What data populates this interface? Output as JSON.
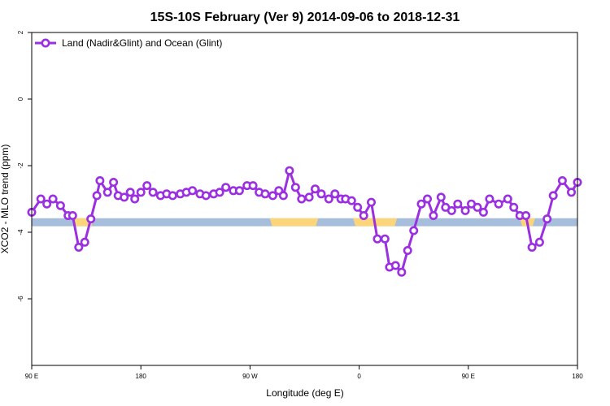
{
  "chart_data": {
    "type": "line",
    "title": "15S-10S February (Ver 9)   2014-09-06 to 2018-12-31",
    "xlabel": "Longitude (deg E)",
    "ylabel": "XCO2 - MLO trend (ppm)",
    "xlim": [
      90,
      450
    ],
    "ylim": [
      -8,
      2
    ],
    "x_tick_values": [
      90,
      162,
      234,
      306,
      378,
      450
    ],
    "x_tick_labels": [
      "90 E",
      "180",
      "90 W",
      "0",
      "90 E",
      "180"
    ],
    "y_ticks": [
      -6,
      -4,
      -2,
      0,
      2
    ],
    "grid": false,
    "legend_position": "top-left",
    "surface_band": {
      "y_top": -3.58,
      "y_bottom": -3.82,
      "ocean_color": "#a6bddb",
      "land_color": "#fcd57a",
      "land_segments": [
        [
          117,
          131
        ],
        [
          247,
          279
        ],
        [
          302,
          331
        ],
        [
          412,
          422
        ]
      ]
    },
    "series": [
      {
        "name": "Land (Nadir&Glint) and Ocean (Glint)",
        "color": "#9b30e0",
        "x": [
          90,
          96,
          100,
          104,
          109,
          114,
          117,
          121,
          125,
          129,
          133,
          135,
          140,
          144,
          147,
          151,
          155,
          158,
          162,
          166,
          170,
          175,
          179,
          183,
          188,
          192,
          196,
          201,
          205,
          210,
          214,
          218,
          223,
          227,
          232,
          236,
          240,
          244,
          249,
          253,
          256,
          260,
          264,
          268,
          273,
          277,
          281,
          286,
          290,
          294,
          297,
          301,
          305,
          309,
          314,
          318,
          323,
          326,
          330,
          334,
          338,
          342,
          347,
          351,
          355,
          360,
          363,
          367,
          371,
          376,
          380,
          384,
          388,
          392,
          398,
          404,
          408,
          412,
          416,
          420,
          425,
          430,
          434,
          440,
          446,
          450
        ],
        "y": [
          -3.4,
          -3.0,
          -3.15,
          -3.0,
          -3.2,
          -3.5,
          -3.5,
          -4.45,
          -4.3,
          -3.6,
          -2.9,
          -2.45,
          -2.8,
          -2.5,
          -2.9,
          -2.95,
          -2.8,
          -3.0,
          -2.8,
          -2.6,
          -2.8,
          -2.9,
          -2.85,
          -2.9,
          -2.85,
          -2.8,
          -2.75,
          -2.85,
          -2.9,
          -2.85,
          -2.8,
          -2.65,
          -2.75,
          -2.75,
          -2.6,
          -2.6,
          -2.8,
          -2.85,
          -2.9,
          -2.75,
          -2.9,
          -2.15,
          -2.65,
          -3.0,
          -2.95,
          -2.7,
          -2.85,
          -3.0,
          -2.85,
          -3.0,
          -3.0,
          -3.05,
          -3.25,
          -3.5,
          -3.1,
          -4.2,
          -4.2,
          -5.05,
          -5.0,
          -5.2,
          -4.55,
          -3.95,
          -3.15,
          -3.0,
          -3.5,
          -2.95,
          -3.25,
          -3.35,
          -3.15,
          -3.35,
          -3.15,
          -3.25,
          -3.4,
          -3.0,
          -3.15,
          -3.0,
          -3.25,
          -3.5,
          -3.5,
          -4.45,
          -4.3,
          -3.6,
          -2.9,
          -2.45,
          -2.8,
          -2.5
        ]
      }
    ]
  }
}
